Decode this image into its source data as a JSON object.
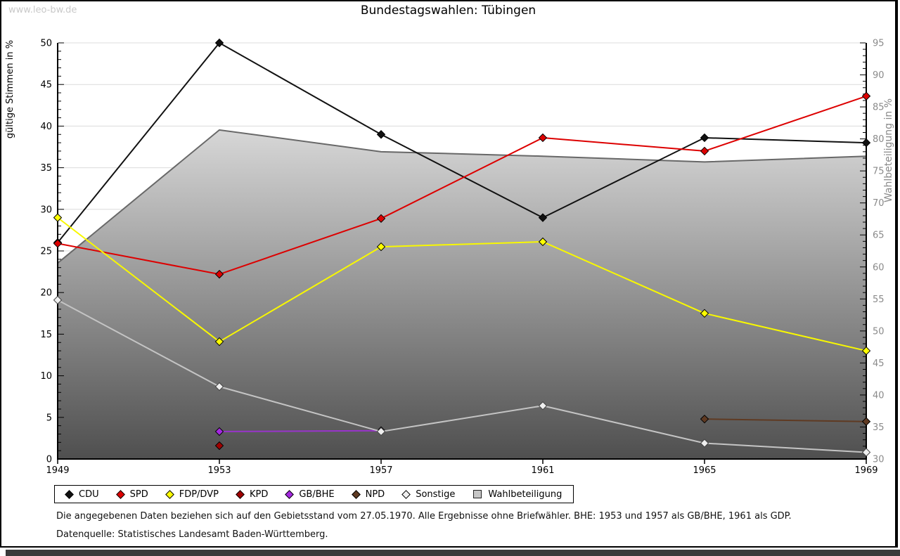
{
  "page": {
    "watermark": "www.leo-bw.de",
    "title": "Bundestagswahlen: Tübingen",
    "footnote_line1": "Die angegebenen Daten beziehen sich auf den Gebietsstand vom 27.05.1970. Alle Ergebnisse ohne Briefwähler. BHE: 1953 und 1957 als GB/BHE, 1961 als GDP.",
    "footnote_line2": "Datenquelle: Statistisches Landesamt Baden-Württemberg."
  },
  "chart_data": {
    "type": "line",
    "title": "Bundestagswahlen: Tübingen",
    "x": [
      1949,
      1953,
      1957,
      1961,
      1965,
      1969
    ],
    "left_axis": {
      "label": "gültige Stimmen in %",
      "min": 0,
      "max": 50,
      "tick_step": 5,
      "minor_step": 1
    },
    "right_axis": {
      "label": "Wahlbeteiligung in %",
      "min": 30,
      "max": 95,
      "tick_step": 5,
      "minor_step": 1
    },
    "grid": true,
    "legend_position": "bottom",
    "colors": {
      "grid": "#dcdcdc",
      "right_axis_text": "#8a8a8a",
      "area_border": "#686868",
      "area_gradient_top": "#fbfbfb",
      "area_gradient_bottom": "#4f4f4f"
    },
    "series": [
      {
        "name": "CDU",
        "axis": "left",
        "kind": "line",
        "color": "#111111",
        "marker_fill": "#111111",
        "values": [
          26.0,
          50.0,
          39.0,
          29.0,
          38.6,
          38.0
        ]
      },
      {
        "name": "SPD",
        "axis": "left",
        "kind": "line",
        "color": "#dd0000",
        "marker_fill": "#dd0000",
        "values": [
          25.9,
          22.2,
          28.9,
          38.6,
          37.0,
          43.6
        ]
      },
      {
        "name": "FDP/DVP",
        "axis": "left",
        "kind": "line",
        "color": "#f8f800",
        "marker_fill": "#ffff00",
        "values": [
          29.0,
          14.1,
          25.5,
          26.1,
          17.5,
          13.0
        ]
      },
      {
        "name": "KPD",
        "axis": "left",
        "kind": "line",
        "color": "#a00000",
        "marker_fill": "#a00000",
        "values": [
          null,
          1.6,
          null,
          null,
          null,
          null
        ]
      },
      {
        "name": "GB/BHE",
        "axis": "left",
        "kind": "line",
        "color": "#9933cc",
        "marker_fill": "#a428e0",
        "values": [
          null,
          3.3,
          3.4,
          null,
          null,
          null
        ]
      },
      {
        "name": "NPD",
        "axis": "left",
        "kind": "line",
        "color": "#5f3a22",
        "marker_fill": "#5f3a22",
        "values": [
          null,
          null,
          null,
          null,
          4.8,
          4.5
        ]
      },
      {
        "name": "Sonstige",
        "axis": "left",
        "kind": "line",
        "color": "#c4c4c4",
        "marker_fill": "#efefef",
        "values": [
          19.1,
          8.7,
          3.3,
          6.4,
          1.9,
          0.8
        ]
      },
      {
        "name": "Wahlbeteiligung",
        "axis": "right",
        "kind": "area",
        "color": "#686868",
        "values": [
          60.6,
          81.4,
          78.0,
          77.3,
          76.4,
          77.3
        ]
      }
    ]
  }
}
